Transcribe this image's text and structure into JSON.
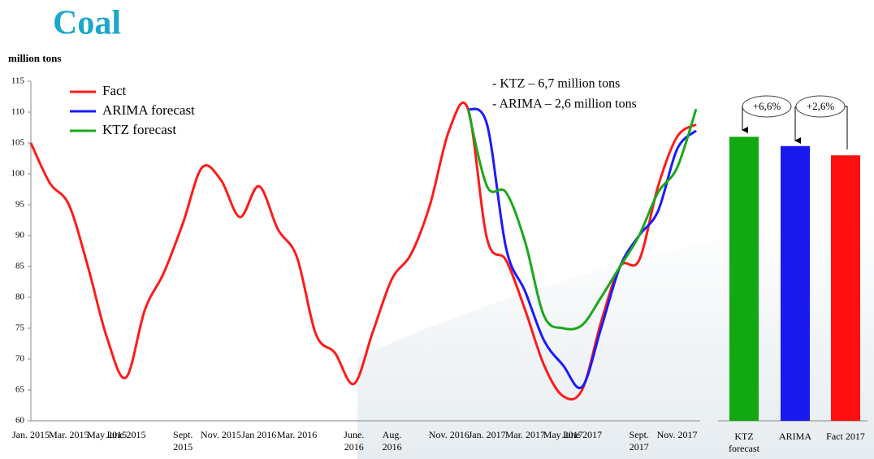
{
  "title": "Coal",
  "chart_data": [
    {
      "type": "line",
      "y_label": "million tons",
      "categories": [
        "Jan. 2015",
        null,
        "Mar. 2015",
        null,
        "May 2015",
        "June 2015",
        null,
        null,
        "Sept. 2015",
        null,
        "Nov. 2015",
        null,
        "Jan 2016",
        null,
        "Mar. 2016",
        null,
        null,
        "June. 2016",
        null,
        "Aug. 2016",
        null,
        null,
        "Nov. 2016",
        null,
        "Jan. 2017",
        null,
        "Mar. 2017",
        null,
        "May 2017",
        "June 2017",
        null,
        null,
        "Sept. 2017",
        null,
        "Nov. 2017",
        null
      ],
      "series": [
        {
          "name": "Fact",
          "color": "#ff1a1a",
          "values": [
            105,
            98.5,
            95,
            85,
            73.5,
            67,
            78,
            84,
            92,
            101,
            99,
            93,
            98,
            91,
            86.5,
            74,
            71,
            66,
            74.5,
            83,
            87,
            95,
            107,
            110.5,
            89.5,
            86,
            78,
            69,
            64,
            65,
            76,
            85,
            86,
            98,
            106,
            108
          ]
        },
        {
          "name": "ARIMA  forecast",
          "color": "#1a1aff",
          "values": [
            null,
            null,
            null,
            null,
            null,
            null,
            null,
            null,
            null,
            null,
            null,
            null,
            null,
            null,
            null,
            null,
            null,
            null,
            null,
            null,
            null,
            null,
            null,
            110.5,
            108,
            88,
            81,
            73,
            69,
            65.5,
            75,
            85,
            90,
            94,
            104,
            107
          ]
        },
        {
          "name": "KTZ forecast",
          "color": "#1aa81a",
          "values": [
            null,
            null,
            null,
            null,
            null,
            null,
            null,
            null,
            null,
            null,
            null,
            null,
            null,
            null,
            null,
            null,
            null,
            null,
            null,
            null,
            null,
            null,
            null,
            110.5,
            98,
            97,
            89,
            77,
            75,
            75.5,
            80,
            85,
            90,
            97,
            101,
            110.5
          ]
        }
      ],
      "ylim": [
        60,
        115
      ],
      "yticks": [
        60,
        65,
        70,
        75,
        80,
        85,
        90,
        95,
        100,
        105,
        110,
        115
      ],
      "grid": false,
      "annotations": [
        "- KTZ – 6,7 million tons",
        "- ARIMA – 2,6 million tons"
      ]
    },
    {
      "type": "bar",
      "categories": [
        "KTZ forecast",
        "ARIMA",
        "Fact 2017"
      ],
      "values": [
        106,
        104.5,
        103
      ],
      "colors": [
        "#12a812",
        "#1a1aee",
        "#ff1010"
      ],
      "ylim": [
        60,
        115
      ],
      "annotations": [
        "+6,6%",
        "+2,6%"
      ]
    }
  ]
}
